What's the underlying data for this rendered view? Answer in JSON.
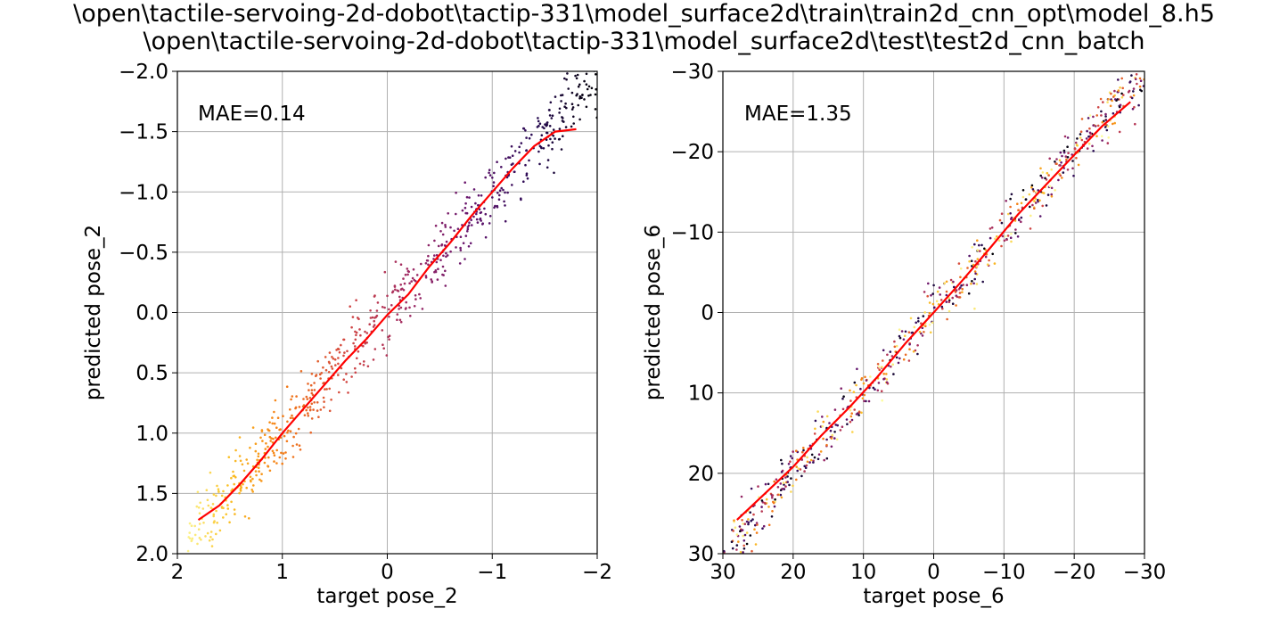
{
  "title": {
    "line1": "\\open\\tactile-servoing-2d-dobot\\tactip-331\\model_surface2d\\train\\train2d_cnn_opt\\model_8.h5",
    "line2": "\\open\\tactile-servoing-2d-dobot\\tactip-331\\model_surface2d\\test\\test2d_cnn_batch"
  },
  "chart_data": [
    {
      "type": "scatter",
      "xlabel": "target pose_2",
      "ylabel": "predicted pose_2",
      "xlim": [
        2,
        -2
      ],
      "ylim": [
        2,
        -2
      ],
      "x_ticks": [
        2,
        1,
        0,
        -1,
        -2
      ],
      "x_tick_labels": [
        "2",
        "1",
        "0",
        "−1",
        "−2"
      ],
      "y_ticks": [
        -2,
        -1.5,
        -1,
        -0.5,
        0,
        0.5,
        1,
        1.5,
        2
      ],
      "y_tick_labels": [
        "−2.0",
        "−1.5",
        "−1.0",
        "−0.5",
        "0.0",
        "0.5",
        "1.0",
        "1.5",
        "2.0"
      ],
      "grid": true,
      "annotation": "MAE=0.14",
      "mae": 0.14,
      "colormap": "inferno",
      "trend_color": "#ff0000",
      "trend_line": {
        "x": [
          1.8,
          1.6,
          1.4,
          1.2,
          1.0,
          0.8,
          0.6,
          0.4,
          0.2,
          0.0,
          -0.2,
          -0.4,
          -0.6,
          -0.8,
          -1.0,
          -1.2,
          -1.4,
          -1.6,
          -1.8
        ],
        "y": [
          1.72,
          1.6,
          1.42,
          1.22,
          1.0,
          0.8,
          0.6,
          0.4,
          0.22,
          0.02,
          -0.15,
          -0.38,
          -0.58,
          -0.8,
          -1.0,
          -1.2,
          -1.38,
          -1.5,
          -1.52
        ]
      },
      "scatter": {
        "x_range": [
          -2,
          1.9
        ],
        "noise_sd": 0.14,
        "count": 700
      }
    },
    {
      "type": "scatter",
      "xlabel": "target pose_6",
      "ylabel": "predicted pose_6",
      "xlim": [
        30,
        -30
      ],
      "ylim": [
        30,
        -30
      ],
      "x_ticks": [
        30,
        20,
        10,
        0,
        -10,
        -20,
        -30
      ],
      "x_tick_labels": [
        "30",
        "20",
        "10",
        "0",
        "−10",
        "−20",
        "−30"
      ],
      "y_ticks": [
        -30,
        -20,
        -10,
        0,
        10,
        20,
        30
      ],
      "y_tick_labels": [
        "−30",
        "−20",
        "−10",
        "0",
        "10",
        "20",
        "30"
      ],
      "grid": true,
      "annotation": "MAE=1.35",
      "mae": 1.35,
      "colormap": "inferno",
      "trend_color": "#ff0000",
      "trend_line": {
        "x": [
          28,
          24,
          20,
          16,
          12,
          8,
          4,
          0,
          -4,
          -8,
          -12,
          -16,
          -20,
          -24,
          -28
        ],
        "y": [
          25.8,
          22.5,
          19.2,
          15.3,
          11.8,
          8.0,
          3.8,
          0.0,
          -3.9,
          -8.0,
          -12.2,
          -15.9,
          -19.6,
          -23.2,
          -26.2
        ]
      },
      "scatter": {
        "x_range": [
          -30,
          30
        ],
        "noise_sd": 1.6,
        "count": 700
      }
    }
  ]
}
